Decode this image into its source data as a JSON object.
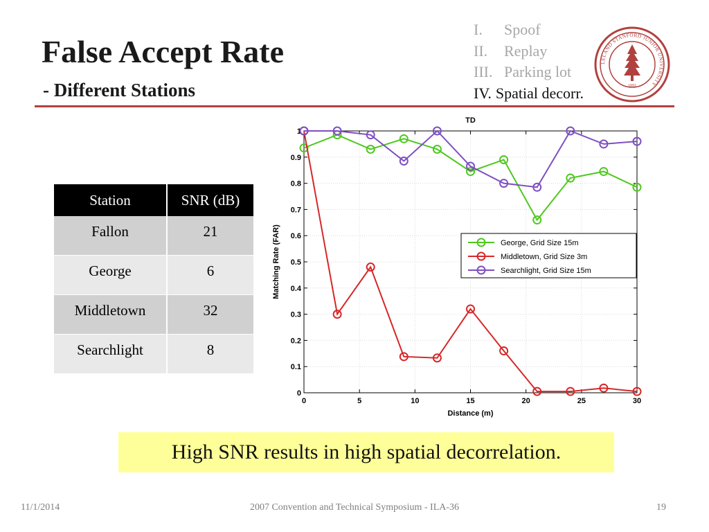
{
  "slide": {
    "title": "False Accept Rate",
    "subtitle": "- Different Stations",
    "accent_color": "#b0413e"
  },
  "outline": [
    {
      "num": "I.",
      "label": "Spoof",
      "state": "dim"
    },
    {
      "num": "II.",
      "label": "Replay",
      "state": "dim"
    },
    {
      "num": "III.",
      "label": "Parking lot",
      "state": "dim"
    },
    {
      "num": "IV.",
      "label": "Spatial decorr.",
      "state": "active"
    }
  ],
  "seal": {
    "icon": "stanford-seal-icon",
    "ring_text": "LELAND STANFORD JUNIOR UNIVERSITY",
    "year": "1891",
    "color": "#b0413e"
  },
  "station_table": {
    "headers": [
      "Station",
      "SNR (dB)"
    ],
    "rows": [
      [
        "Fallon",
        "21"
      ],
      [
        "George",
        "6"
      ],
      [
        "Middletown",
        "32"
      ],
      [
        "Searchlight",
        "8"
      ]
    ]
  },
  "chart_data": {
    "type": "line",
    "title": "TD",
    "xlabel": "Distance (m)",
    "ylabel": "Matching Rate (FAR)",
    "xlim": [
      0,
      30
    ],
    "ylim": [
      0,
      1
    ],
    "xticks": [
      0,
      5,
      10,
      15,
      20,
      25,
      30
    ],
    "yticks": [
      0,
      0.1,
      0.2,
      0.3,
      0.4,
      0.5,
      0.6,
      0.7,
      0.8,
      0.9,
      1
    ],
    "grid": true,
    "legend_position": "right",
    "marker": "circle",
    "x": [
      0,
      3,
      6,
      9,
      12,
      15,
      18,
      21,
      24,
      27,
      30
    ],
    "series": [
      {
        "name": "George, Grid Size 15m",
        "color": "#4ec81e",
        "values": [
          0.935,
          0.985,
          0.93,
          0.97,
          0.93,
          0.845,
          0.89,
          0.66,
          0.82,
          0.845,
          0.785
        ]
      },
      {
        "name": "Middletown, Grid Size 3m",
        "color": "#d62728",
        "values": [
          1.0,
          0.3,
          0.48,
          0.138,
          0.133,
          0.32,
          0.16,
          0.005,
          0.005,
          0.018,
          0.005
        ]
      },
      {
        "name": "Searchlight, Grid Size 15m",
        "color": "#7e4fc1",
        "values": [
          1.0,
          1.0,
          0.985,
          0.885,
          1.0,
          0.865,
          0.8,
          0.785,
          1.0,
          0.95,
          0.96
        ]
      }
    ]
  },
  "callout": {
    "text": "High SNR results in  high spatial decorrelation."
  },
  "footer": {
    "date": "11/1/2014",
    "event": "2007 Convention and Technical Symposium - ILA-36",
    "page": "19"
  }
}
